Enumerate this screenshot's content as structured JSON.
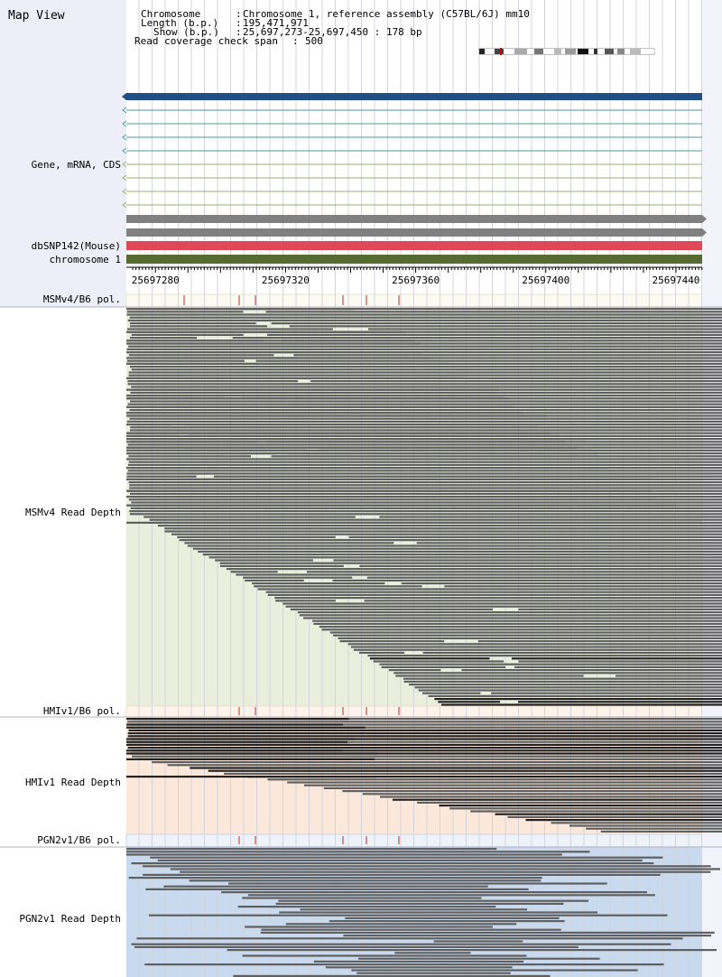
{
  "title": "Map View",
  "info": {
    "chromosome_label": "Chromosome",
    "chromosome_value": "Chromosome 1, reference assembly (C57BL/6J) mm10",
    "length_label": "Length (b.p.)",
    "length_value": "195,471,971",
    "show_label": "Show (b.p.)",
    "show_value": "25,697,273-25,697,450 : 178 bp",
    "coverage_label": "Read coverage check span",
    "coverage_value": "500"
  },
  "tracks": {
    "gene": "Gene, mRNA, CDS",
    "dbsnp": "dbSNP142(Mouse)",
    "chromosome": "chromosome 1",
    "msm_pol": "MSMv4/B6 pol.",
    "msm_depth": "MSMv4 Read Depth",
    "hmi_pol": "HMIv1/B6 pol.",
    "hmi_depth": "HMIv1 Read Depth",
    "pgn_pol": "PGN2v1/B6 pol.",
    "pgn_depth": "PGN2v1 Read Depth"
  },
  "axis": {
    "start": 25697273,
    "end": 25697450,
    "tick_labels": [
      "25697280",
      "25697320",
      "25697360",
      "25697400",
      "25697440"
    ]
  },
  "colors": {
    "gene_main": "#1f4f84",
    "transcript_line": "#4c9b9b",
    "transcript_line2": "#9aaf6a",
    "cds_gray": "#808080",
    "snp_red": "#e04858",
    "chrom_green": "#556b2f",
    "msm_bg": "#eaeedd",
    "hmi_bg": "#fbe8da",
    "pgn_bg": "#c9d9ee",
    "read": "#606060",
    "read_dark": "#222222"
  }
}
